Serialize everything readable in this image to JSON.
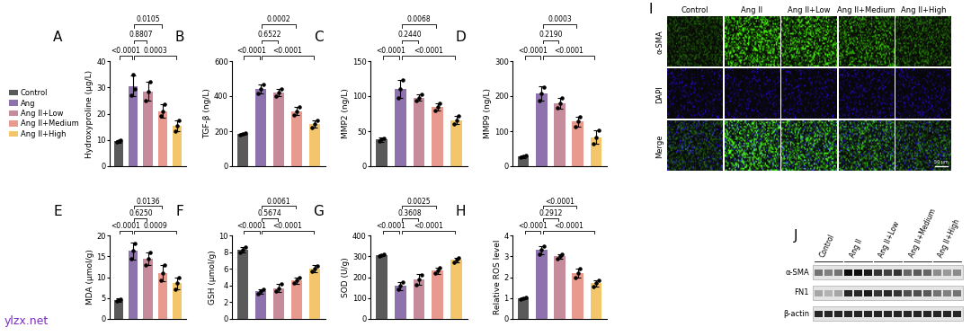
{
  "chart_data": [
    {
      "type": "bar",
      "panel": "A",
      "y_label": "Hydroxyproline (μg/L)",
      "categories": [
        "Control",
        "Ang",
        "Ang II+Low",
        "Ang II+Medium",
        "Ang II+High"
      ],
      "colors": [
        "#5a5a5a",
        "#8e72ad",
        "#c78c9c",
        "#e99a8e",
        "#f3c66c"
      ],
      "values": [
        9.5,
        30.5,
        28.5,
        21,
        15.5
      ],
      "errors": [
        0.5,
        4,
        3.5,
        2.5,
        2
      ],
      "points": [
        [
          9.2,
          9.5,
          9.9
        ],
        [
          27,
          35,
          29.5
        ],
        [
          25,
          28.5,
          32
        ],
        [
          19,
          21,
          23.5
        ],
        [
          13.5,
          15.5,
          17.5
        ]
      ],
      "ylim": [
        0,
        40
      ],
      "yticks": [
        0,
        10,
        20,
        30,
        40
      ],
      "tick_labels": "y",
      "legend": "left",
      "comparisons": [
        {
          "groups": [
            0,
            1
          ],
          "label": "<0.0001"
        },
        {
          "groups": [
            1,
            4
          ],
          "label": "0.0003"
        },
        {
          "groups": [
            1,
            2
          ],
          "label": "0.8807"
        },
        {
          "groups": [
            1,
            3
          ],
          "label": "0.0105"
        }
      ]
    },
    {
      "type": "bar",
      "panel": "B",
      "y_label": "TGF-β (ng/L)",
      "categories": [
        "Control",
        "Ang",
        "Ang II+Low",
        "Ang II+Medium",
        "Ang II+High"
      ],
      "colors": [
        "#5a5a5a",
        "#8e72ad",
        "#c78c9c",
        "#e99a8e",
        "#f3c66c"
      ],
      "values": [
        185,
        440,
        420,
        315,
        240
      ],
      "errors": [
        5,
        25,
        20,
        25,
        20
      ],
      "points": [
        [
          181,
          185,
          189
        ],
        [
          415,
          440,
          465
        ],
        [
          400,
          420,
          440
        ],
        [
          290,
          315,
          340
        ],
        [
          220,
          240,
          260
        ]
      ],
      "ylim": [
        0,
        600
      ],
      "yticks": [
        0,
        200,
        400,
        600
      ],
      "tick_labels": "y",
      "comparisons": [
        {
          "groups": [
            0,
            1
          ],
          "label": "<0.0001"
        },
        {
          "groups": [
            1,
            4
          ],
          "label": "<0.0001"
        },
        {
          "groups": [
            1,
            2
          ],
          "label": "0.6522"
        },
        {
          "groups": [
            1,
            3
          ],
          "label": "0.0002"
        }
      ]
    },
    {
      "type": "bar",
      "panel": "C",
      "y_label": "MMP2 (ng/L)",
      "categories": [
        "Control",
        "Ang",
        "Ang II+Low",
        "Ang II+Medium",
        "Ang II+High"
      ],
      "colors": [
        "#5a5a5a",
        "#8e72ad",
        "#c78c9c",
        "#e99a8e",
        "#f3c66c"
      ],
      "values": [
        38,
        110,
        98,
        85,
        66
      ],
      "errors": [
        3,
        13,
        5,
        5,
        6
      ],
      "points": [
        [
          36,
          38,
          40
        ],
        [
          97,
          110,
          123
        ],
        [
          93,
          98,
          103
        ],
        [
          80,
          85,
          90
        ],
        [
          60,
          66,
          72
        ]
      ],
      "ylim": [
        0,
        150
      ],
      "yticks": [
        0,
        50,
        100,
        150
      ],
      "tick_labels": "y",
      "comparisons": [
        {
          "groups": [
            0,
            1
          ],
          "label": "<0.0001"
        },
        {
          "groups": [
            1,
            4
          ],
          "label": "<0.0001"
        },
        {
          "groups": [
            1,
            2
          ],
          "label": "0.2440"
        },
        {
          "groups": [
            1,
            3
          ],
          "label": "0.0068"
        }
      ]
    },
    {
      "type": "bar",
      "panel": "D",
      "y_label": "MMP9 (ng/L)",
      "categories": [
        "Control",
        "Ang",
        "Ang II+Low",
        "Ang II+Medium",
        "Ang II+High"
      ],
      "colors": [
        "#5a5a5a",
        "#8e72ad",
        "#c78c9c",
        "#e99a8e",
        "#f3c66c"
      ],
      "values": [
        28,
        207,
        180,
        127,
        83
      ],
      "errors": [
        4,
        20,
        15,
        15,
        20
      ],
      "points": [
        [
          25,
          28,
          31
        ],
        [
          188,
          207,
          226
        ],
        [
          166,
          180,
          194
        ],
        [
          113,
          127,
          141
        ],
        [
          64,
          83,
          102
        ]
      ],
      "ylim": [
        0,
        300
      ],
      "yticks": [
        0,
        100,
        200,
        300
      ],
      "tick_labels": "y",
      "comparisons": [
        {
          "groups": [
            0,
            1
          ],
          "label": "<0.0001"
        },
        {
          "groups": [
            1,
            4
          ],
          "label": "<0.0001"
        },
        {
          "groups": [
            1,
            2
          ],
          "label": "0.2190"
        },
        {
          "groups": [
            1,
            3
          ],
          "label": "0.0003"
        }
      ]
    },
    {
      "type": "bar",
      "panel": "E",
      "y_label": "MDA (μmol/g)",
      "categories": [
        "Control",
        "Ang",
        "Ang II+Low",
        "Ang II+Medium",
        "Ang II+High"
      ],
      "colors": [
        "#5a5a5a",
        "#8e72ad",
        "#c78c9c",
        "#e99a8e",
        "#f3c66c"
      ],
      "values": [
        4.5,
        16.3,
        14.5,
        11,
        8.5
      ],
      "errors": [
        0.4,
        2,
        1.5,
        2,
        1.5
      ],
      "points": [
        [
          4.2,
          4.5,
          4.8
        ],
        [
          14.5,
          16.3,
          18.1
        ],
        [
          13,
          14.5,
          16
        ],
        [
          9.2,
          11,
          12.8
        ],
        [
          7.2,
          8.5,
          9.8
        ]
      ],
      "ylim": [
        0,
        20
      ],
      "yticks": [
        0,
        5,
        10,
        15,
        20
      ],
      "tick_labels": "y",
      "comparisons": [
        {
          "groups": [
            0,
            1
          ],
          "label": "<0.0001"
        },
        {
          "groups": [
            1,
            4
          ],
          "label": "0.0009"
        },
        {
          "groups": [
            1,
            2
          ],
          "label": "0.6250"
        },
        {
          "groups": [
            1,
            3
          ],
          "label": "0.0136"
        }
      ]
    },
    {
      "type": "bar",
      "panel": "F",
      "y_label": "GSH (μmol/g)",
      "categories": [
        "Control",
        "Ang",
        "Ang II+Low",
        "Ang II+Medium",
        "Ang II+High"
      ],
      "colors": [
        "#5a5a5a",
        "#8e72ad",
        "#c78c9c",
        "#e99a8e",
        "#f3c66c"
      ],
      "values": [
        8.3,
        3.3,
        3.7,
        4.6,
        6.0
      ],
      "errors": [
        0.3,
        0.3,
        0.5,
        0.4,
        0.4
      ],
      "points": [
        [
          8.0,
          8.3,
          8.6
        ],
        [
          3.0,
          3.3,
          3.6
        ],
        [
          3.3,
          3.7,
          4.2
        ],
        [
          4.3,
          4.6,
          4.9
        ],
        [
          5.7,
          6.0,
          6.3
        ]
      ],
      "ylim": [
        0,
        10
      ],
      "yticks": [
        0,
        2,
        4,
        6,
        8,
        10
      ],
      "tick_labels": "y",
      "comparisons": [
        {
          "groups": [
            0,
            1
          ],
          "label": "<0.0001"
        },
        {
          "groups": [
            1,
            4
          ],
          "label": "<0.0001"
        },
        {
          "groups": [
            1,
            2
          ],
          "label": "0.5674"
        },
        {
          "groups": [
            1,
            3
          ],
          "label": "0.0061"
        }
      ]
    },
    {
      "type": "bar",
      "panel": "G",
      "y_label": "SOD (U/g)",
      "categories": [
        "Control",
        "Ang",
        "Ang II+Low",
        "Ang II+Medium",
        "Ang II+High"
      ],
      "colors": [
        "#5a5a5a",
        "#8e72ad",
        "#c78c9c",
        "#e99a8e",
        "#f3c66c"
      ],
      "values": [
        305,
        158,
        188,
        232,
        282
      ],
      "errors": [
        5,
        20,
        25,
        15,
        10
      ],
      "points": [
        [
          301,
          305,
          309
        ],
        [
          140,
          158,
          176
        ],
        [
          165,
          188,
          211
        ],
        [
          218,
          232,
          246
        ],
        [
          273,
          282,
          291
        ]
      ],
      "ylim": [
        0,
        400
      ],
      "yticks": [
        0,
        100,
        200,
        300,
        400
      ],
      "tick_labels": "y",
      "comparisons": [
        {
          "groups": [
            0,
            1
          ],
          "label": "<0.0001"
        },
        {
          "groups": [
            1,
            4
          ],
          "label": "<0.0001"
        },
        {
          "groups": [
            1,
            2
          ],
          "label": "0.3608"
        },
        {
          "groups": [
            1,
            3
          ],
          "label": "0.0025"
        }
      ]
    },
    {
      "type": "bar",
      "panel": "H",
      "y_label": "Relative ROS level",
      "categories": [
        "Control",
        "Ang",
        "Ang II+Low",
        "Ang II+Medium",
        "Ang II+High"
      ],
      "colors": [
        "#5a5a5a",
        "#8e72ad",
        "#c78c9c",
        "#e99a8e",
        "#f3c66c"
      ],
      "values": [
        1.0,
        3.3,
        3.0,
        2.2,
        1.7
      ],
      "errors": [
        0.05,
        0.2,
        0.1,
        0.2,
        0.15
      ],
      "points": [
        [
          0.96,
          1.0,
          1.04
        ],
        [
          3.1,
          3.3,
          3.5
        ],
        [
          2.9,
          3.0,
          3.1
        ],
        [
          2.0,
          2.2,
          2.4
        ],
        [
          1.55,
          1.7,
          1.85
        ]
      ],
      "ylim": [
        0,
        4
      ],
      "yticks": [
        0,
        1,
        2,
        3,
        4
      ],
      "tick_labels": "y",
      "comparisons": [
        {
          "groups": [
            0,
            1
          ],
          "label": "<0.0001"
        },
        {
          "groups": [
            1,
            4
          ],
          "label": "<0.0001"
        },
        {
          "groups": [
            1,
            2
          ],
          "label": "0.2912"
        },
        {
          "groups": [
            1,
            3
          ],
          "label": "<0.0001"
        }
      ]
    }
  ],
  "immunofluorescence": {
    "panel": "I",
    "columns": [
      "Control",
      "Ang II",
      "Ang II+Low",
      "Ang II+Medium",
      "Ang II+High"
    ],
    "rows": [
      "α-SMA",
      "DAPI",
      "Merge"
    ],
    "alpha_sma_intensity": [
      0.3,
      0.95,
      0.8,
      0.6,
      0.4
    ],
    "scale_bar": "50 μm"
  },
  "western_blot": {
    "panel": "J",
    "columns": [
      "Control",
      "Ang II",
      "Ang II+Low",
      "Ang II+Medium",
      "Ang II+High"
    ],
    "lanes_per_group": 3,
    "rows": [
      {
        "name": "α-SMA",
        "intensity": [
          0.55,
          0.5,
          0.55,
          0.95,
          0.95,
          0.9,
          0.8,
          0.75,
          0.8,
          0.6,
          0.65,
          0.6,
          0.45,
          0.4,
          0.45
        ]
      },
      {
        "name": "FN1",
        "intensity": [
          0.35,
          0.3,
          0.35,
          0.85,
          0.85,
          0.9,
          0.8,
          0.85,
          0.8,
          0.7,
          0.7,
          0.65,
          0.55,
          0.5,
          0.55
        ]
      },
      {
        "name": "β-actin",
        "intensity": [
          0.85,
          0.85,
          0.85,
          0.85,
          0.85,
          0.85,
          0.85,
          0.85,
          0.85,
          0.85,
          0.85,
          0.85,
          0.85,
          0.85,
          0.85
        ]
      }
    ]
  },
  "watermark": "ylzx.net"
}
